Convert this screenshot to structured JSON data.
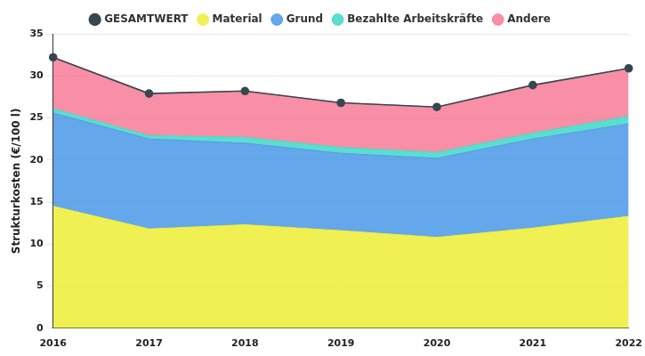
{
  "chart_data": {
    "type": "area",
    "stacked": true,
    "grid": true,
    "legend": "top",
    "y_label": "Strukturkosten (€/100 l)",
    "categories": [
      "2016",
      "2017",
      "2018",
      "2019",
      "2020",
      "2021",
      "2022"
    ],
    "series": [
      {
        "name": "Material",
        "type": "area",
        "color": "#eeee3a",
        "values": [
          14.5,
          11.8,
          12.3,
          11.6,
          10.8,
          11.9,
          13.3
        ]
      },
      {
        "name": "Grund",
        "type": "area",
        "color": "#4f9be8",
        "values": [
          11.1,
          10.7,
          9.7,
          9.2,
          9.4,
          10.6,
          11.0
        ]
      },
      {
        "name": "Bezahlte Arbeitskräfte",
        "type": "area",
        "color": "#45d9c8",
        "values": [
          0.5,
          0.4,
          0.7,
          0.7,
          0.7,
          0.7,
          0.9
        ]
      },
      {
        "name": "Andere",
        "type": "area",
        "color": "#f7809a",
        "values": [
          6.1,
          5.0,
          5.5,
          5.3,
          5.4,
          5.7,
          5.7
        ]
      },
      {
        "name": "GESAMTWERT",
        "type": "line",
        "marker": "circle",
        "color": "#37474f",
        "values": [
          32.2,
          27.9,
          28.2,
          26.8,
          26.3,
          28.9,
          30.9
        ]
      }
    ],
    "ylim": [
      0,
      35
    ],
    "yticks": [
      0,
      5,
      10,
      15,
      20,
      25,
      30,
      35
    ]
  }
}
